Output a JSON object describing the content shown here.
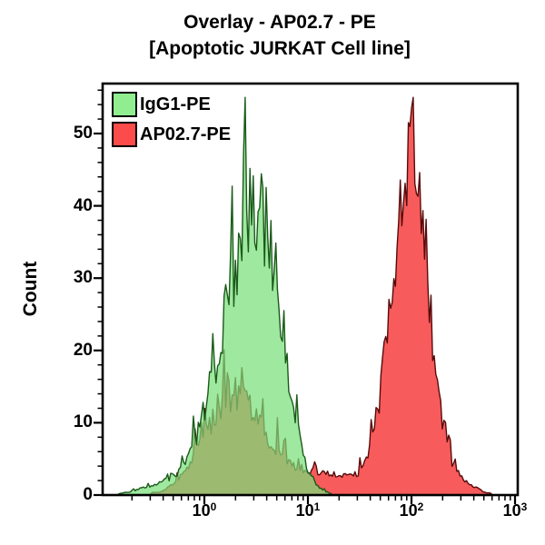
{
  "title": {
    "line1": "Overlay - AP02.7 - PE",
    "line2": "[Apoptotic JURKAT Cell line]"
  },
  "chart_data": {
    "type": "area",
    "subtype": "flow-cytometry-histogram-overlay",
    "title": "Overlay - AP02.7 - PE [Apoptotic JURKAT Cell line]",
    "ylabel": "Count",
    "x_scale": "log10",
    "x_log_range": [
      -1,
      3
    ],
    "y_range": [
      0,
      57
    ],
    "y_major_ticks": [
      0,
      10,
      20,
      30,
      40,
      50
    ],
    "y_minor_tick_step": 2,
    "x_tick_base": "10",
    "x_major_tick_exponents": [
      "0",
      "1",
      "2",
      "3"
    ],
    "x_minor_tick_multiples": [
      2,
      3,
      4,
      5,
      6,
      7,
      8,
      9
    ],
    "max_count_clip": 55,
    "legend_position": "top-left-inside",
    "draw_order": [
      1,
      0
    ],
    "series": [
      {
        "name": "IgG1-PE",
        "role": "isotype-control",
        "legend_color": "#90EE90",
        "fill": "#7ADF7A",
        "fill_opacity": 0.72,
        "stroke": "#1A5A1A",
        "noise_seed": 13,
        "noise": {
          "jitter": 0.36,
          "spike_prob": 0.16,
          "spike_amp": 0.38
        },
        "populations": [
          {
            "peak_log": 0.52,
            "sigma_left": 0.33,
            "sigma_right": 0.22,
            "peak_count": 40
          },
          {
            "peak_log": -0.45,
            "sigma_left": 0.2,
            "sigma_right": 0.18,
            "peak_count": 1.1
          }
        ]
      },
      {
        "name": "AP02.7-PE",
        "role": "stained-sample",
        "legend_color": "#FB4B4B",
        "fill": "#F85B5B",
        "fill_opacity": 1,
        "stroke": "#570B0B",
        "noise_seed": 47,
        "noise": {
          "jitter": 0.36,
          "spike_prob": 0.16,
          "spike_amp": 0.38
        },
        "populations": [
          {
            "peak_log": 0.27,
            "sigma_left": 0.27,
            "sigma_right": 0.28,
            "peak_count": 13
          },
          {
            "peak_log": 1.05,
            "sigma_left": 0.5,
            "sigma_right": 0.45,
            "peak_count": 3.0
          },
          {
            "peak_log": 2.0,
            "sigma_left": 0.19,
            "sigma_right": 0.16,
            "peak_count": 48
          },
          {
            "peak_log": 2.42,
            "sigma_left": 0.1,
            "sigma_right": 0.16,
            "peak_count": 2.2
          }
        ]
      }
    ]
  }
}
